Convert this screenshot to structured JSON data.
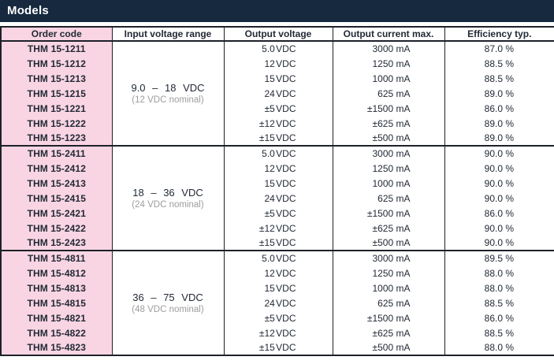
{
  "colors": {
    "navy": "#16293e",
    "pink": "#f9d5e3",
    "border": "#1d2129",
    "text": "#222a36",
    "muted": "#9d9d9d"
  },
  "section": {
    "title": "Models"
  },
  "table": {
    "headers": {
      "order_code": "Order code",
      "input_voltage_range": "Input voltage range",
      "output_voltage": "Output voltage",
      "output_current_max": "Output current max.",
      "efficiency_typ": "Efficiency typ."
    },
    "groups": [
      {
        "input_range": "9.0 – 18 VDC",
        "input_nominal": "(12 VDC nominal)",
        "rows": [
          {
            "code": "THM 15-1211",
            "vout": "5.0 VDC",
            "iout": "3000 mA",
            "eff": "87.0 %"
          },
          {
            "code": "THM 15-1212",
            "vout": "12 VDC",
            "iout": "1250 mA",
            "eff": "88.5 %"
          },
          {
            "code": "THM 15-1213",
            "vout": "15 VDC",
            "iout": "1000 mA",
            "eff": "88.5 %"
          },
          {
            "code": "THM 15-1215",
            "vout": "24 VDC",
            "iout": "625 mA",
            "eff": "89.0 %"
          },
          {
            "code": "THM 15-1221",
            "vout": "±5 VDC",
            "iout": "±1500 mA",
            "eff": "86.0 %"
          },
          {
            "code": "THM 15-1222",
            "vout": "±12 VDC",
            "iout": "±625 mA",
            "eff": "89.0 %"
          },
          {
            "code": "THM 15-1223",
            "vout": "±15 VDC",
            "iout": "±500 mA",
            "eff": "89.0 %"
          }
        ]
      },
      {
        "input_range": "18 – 36 VDC",
        "input_nominal": "(24 VDC nominal)",
        "rows": [
          {
            "code": "THM 15-2411",
            "vout": "5.0 VDC",
            "iout": "3000 mA",
            "eff": "90.0 %"
          },
          {
            "code": "THM 15-2412",
            "vout": "12 VDC",
            "iout": "1250 mA",
            "eff": "90.0 %"
          },
          {
            "code": "THM 15-2413",
            "vout": "15 VDC",
            "iout": "1000 mA",
            "eff": "90.0 %"
          },
          {
            "code": "THM 15-2415",
            "vout": "24 VDC",
            "iout": "625 mA",
            "eff": "90.0 %"
          },
          {
            "code": "THM 15-2421",
            "vout": "±5 VDC",
            "iout": "±1500 mA",
            "eff": "86.0 %"
          },
          {
            "code": "THM 15-2422",
            "vout": "±12 VDC",
            "iout": "±625 mA",
            "eff": "90.0 %"
          },
          {
            "code": "THM 15-2423",
            "vout": "±15 VDC",
            "iout": "±500 mA",
            "eff": "90.0 %"
          }
        ]
      },
      {
        "input_range": "36 – 75 VDC",
        "input_nominal": "(48 VDC nominal)",
        "rows": [
          {
            "code": "THM 15-4811",
            "vout": "5.0 VDC",
            "iout": "3000 mA",
            "eff": "89.5 %"
          },
          {
            "code": "THM 15-4812",
            "vout": "12 VDC",
            "iout": "1250 mA",
            "eff": "88.0 %"
          },
          {
            "code": "THM 15-4813",
            "vout": "15 VDC",
            "iout": "1000 mA",
            "eff": "88.0 %"
          },
          {
            "code": "THM 15-4815",
            "vout": "24 VDC",
            "iout": "625 mA",
            "eff": "88.5 %"
          },
          {
            "code": "THM 15-4821",
            "vout": "±5 VDC",
            "iout": "±1500 mA",
            "eff": "86.0 %"
          },
          {
            "code": "THM 15-4822",
            "vout": "±12 VDC",
            "iout": "±625 mA",
            "eff": "88.5 %"
          },
          {
            "code": "THM 15-4823",
            "vout": "±15 VDC",
            "iout": "±500 mA",
            "eff": "88.0 %"
          }
        ]
      }
    ]
  }
}
